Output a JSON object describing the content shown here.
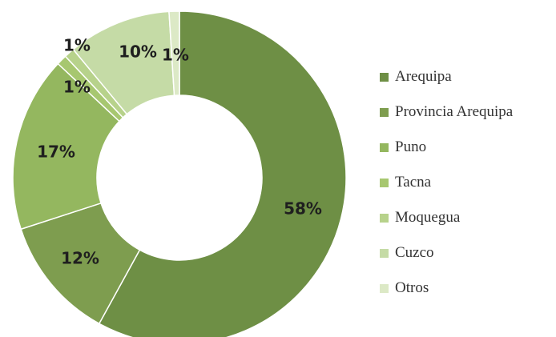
{
  "chart_data": {
    "type": "pie",
    "style": "donut",
    "categories": [
      "Arequipa",
      "Provincia Arequipa",
      "Puno",
      "Tacna",
      "Moquegua",
      "Cuzco",
      "Otros"
    ],
    "values": [
      58,
      12,
      17,
      1,
      1,
      10,
      1
    ],
    "data_labels": [
      "58%",
      "12%",
      "17%",
      "1%",
      "1%",
      "10%",
      "1%"
    ],
    "unit": "%",
    "colors": [
      "#6e8f45",
      "#7e9d4f",
      "#94b75f",
      "#a7c770",
      "#b7d28b",
      "#c5dba6",
      "#dce9c6"
    ],
    "title": "",
    "legend": {
      "placement": "right",
      "entries": [
        "Arequipa",
        "Provincia Arequipa",
        "Puno",
        "Tacna",
        "Moquegua",
        "Cuzco",
        "Otros"
      ]
    },
    "start_angle_deg": 0,
    "direction": "clockwise"
  }
}
